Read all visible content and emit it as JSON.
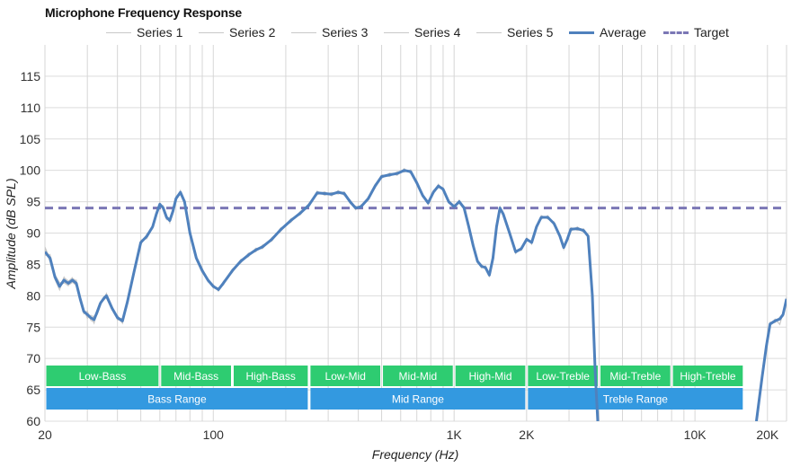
{
  "chart_data": {
    "type": "line",
    "title": "Microphone Frequency Response",
    "xlabel": "Frequency (Hz)",
    "ylabel": "Amplitude (dB SPL)",
    "xscale": "log",
    "xlim": [
      20,
      24000
    ],
    "ylim": [
      60,
      120
    ],
    "x_ticks": [
      {
        "value": 20,
        "label": "20"
      },
      {
        "value": 100,
        "label": "100"
      },
      {
        "value": 1000,
        "label": "1K"
      },
      {
        "value": 2000,
        "label": "2K"
      },
      {
        "value": 10000,
        "label": "10K"
      },
      {
        "value": 20000,
        "label": "20K"
      }
    ],
    "y_ticks": [
      60,
      65,
      70,
      75,
      80,
      85,
      90,
      95,
      100,
      105,
      110,
      115
    ],
    "grid": true,
    "legend_position": "top",
    "colors": {
      "series": "#c8c8c8",
      "average": "#4f81bd",
      "target": "#7b77b5",
      "band_green": "#2ecc71",
      "band_blue": "#3399e0"
    },
    "legend": [
      {
        "label": "Series 1",
        "style": "thin-gray"
      },
      {
        "label": "Series 2",
        "style": "thin-gray"
      },
      {
        "label": "Series 3",
        "style": "thin-gray"
      },
      {
        "label": "Series 4",
        "style": "thin-gray"
      },
      {
        "label": "Series 5",
        "style": "thin-gray"
      },
      {
        "label": "Average",
        "style": "thick-blue"
      },
      {
        "label": "Target",
        "style": "dashed-purple"
      }
    ],
    "target": 94,
    "average": [
      [
        20,
        87
      ],
      [
        21,
        86
      ],
      [
        22,
        83
      ],
      [
        23,
        81.5
      ],
      [
        24,
        82.5
      ],
      [
        25,
        82
      ],
      [
        26,
        82.5
      ],
      [
        27,
        82
      ],
      [
        28,
        79.5
      ],
      [
        29,
        77.5
      ],
      [
        30,
        77
      ],
      [
        31,
        76.5
      ],
      [
        32,
        76.2
      ],
      [
        33,
        77.5
      ],
      [
        34,
        78.8
      ],
      [
        35,
        79.5
      ],
      [
        36,
        80
      ],
      [
        38,
        78
      ],
      [
        40,
        76.5
      ],
      [
        42,
        76
      ],
      [
        44,
        79
      ],
      [
        47,
        84
      ],
      [
        50,
        88.5
      ],
      [
        53,
        89.5
      ],
      [
        56,
        91
      ],
      [
        58,
        93
      ],
      [
        60,
        94.6
      ],
      [
        62,
        94
      ],
      [
        64,
        92.5
      ],
      [
        66,
        92
      ],
      [
        68,
        93.5
      ],
      [
        70,
        95.5
      ],
      [
        73,
        96.5
      ],
      [
        76,
        95
      ],
      [
        80,
        90
      ],
      [
        85,
        86
      ],
      [
        90,
        84
      ],
      [
        95,
        82.5
      ],
      [
        100,
        81.5
      ],
      [
        105,
        81
      ],
      [
        110,
        82
      ],
      [
        120,
        84
      ],
      [
        130,
        85.5
      ],
      [
        140,
        86.5
      ],
      [
        150,
        87.3
      ],
      [
        160,
        87.8
      ],
      [
        175,
        89
      ],
      [
        190,
        90.5
      ],
      [
        210,
        92
      ],
      [
        230,
        93.2
      ],
      [
        250,
        94.5
      ],
      [
        270,
        96.4
      ],
      [
        290,
        96.3
      ],
      [
        310,
        96.2
      ],
      [
        330,
        96.5
      ],
      [
        350,
        96.3
      ],
      [
        370,
        95
      ],
      [
        390,
        94
      ],
      [
        410,
        94.2
      ],
      [
        440,
        95.5
      ],
      [
        470,
        97.5
      ],
      [
        500,
        99
      ],
      [
        540,
        99.3
      ],
      [
        580,
        99.5
      ],
      [
        620,
        100
      ],
      [
        660,
        99.8
      ],
      [
        700,
        98
      ],
      [
        740,
        96
      ],
      [
        780,
        94.8
      ],
      [
        820,
        96.5
      ],
      [
        860,
        97.5
      ],
      [
        900,
        97
      ],
      [
        950,
        95
      ],
      [
        1000,
        94.2
      ],
      [
        1050,
        95
      ],
      [
        1100,
        94
      ],
      [
        1150,
        91
      ],
      [
        1200,
        88
      ],
      [
        1250,
        85.5
      ],
      [
        1300,
        84.7
      ],
      [
        1350,
        84.5
      ],
      [
        1400,
        83.3
      ],
      [
        1450,
        86
      ],
      [
        1500,
        91
      ],
      [
        1550,
        94
      ],
      [
        1600,
        93
      ],
      [
        1700,
        90
      ],
      [
        1800,
        87
      ],
      [
        1900,
        87.5
      ],
      [
        2000,
        89
      ],
      [
        2100,
        88.5
      ],
      [
        2200,
        91
      ],
      [
        2300,
        92.5
      ],
      [
        2450,
        92.5
      ],
      [
        2600,
        91.5
      ],
      [
        2750,
        89.5
      ],
      [
        2850,
        87.7
      ],
      [
        2950,
        89
      ],
      [
        3050,
        90.6
      ],
      [
        3250,
        90.7
      ],
      [
        3450,
        90.4
      ],
      [
        3600,
        89.5
      ],
      [
        3750,
        80
      ],
      [
        3850,
        68
      ],
      [
        3950,
        60
      ],
      [
        4000,
        55
      ],
      [
        17000,
        55
      ],
      [
        18000,
        60
      ],
      [
        19000,
        67
      ],
      [
        19800,
        72
      ],
      [
        20500,
        75.5
      ],
      [
        21500,
        76
      ],
      [
        22500,
        76.3
      ],
      [
        23200,
        77
      ],
      [
        23700,
        78.5
      ],
      [
        24000,
        79.5
      ]
    ],
    "series": [
      {
        "label": "Series 1",
        "values": [
          87.3,
          86.2,
          82.6,
          80.9,
          82.9,
          82.4,
          82.2,
          81.6,
          79.9,
          77.8,
          76.4,
          76.9,
          76.6,
          77.1,
          79.1,
          79.3,
          80.4,
          78.3,
          76.1,
          76.4,
          78.6,
          84.3,
          88.1,
          89.9,
          90.7,
          93.3,
          94.9,
          93.6,
          92.1,
          92.4,
          93.2,
          95.9,
          96.2,
          95.3,
          89.7,
          86.3,
          84.4,
          82.2,
          81.8,
          80.7,
          82.3,
          83.7,
          85.8,
          86.2,
          87.6,
          87.5,
          89.3,
          90.2,
          92.3,
          92.9,
          94.8,
          96.1,
          96.6,
          95.9,
          96.8,
          96.0,
          95.3,
          93.7,
          94.5,
          95.2,
          97.8,
          98.7,
          99.6,
          99.2,
          100.3,
          99.5,
          98.3,
          95.7,
          95.1,
          96.2,
          97.8,
          96.7,
          95.3,
          93.9,
          95.3,
          93.7,
          91.3,
          87.7,
          85.8,
          84.4,
          84.8,
          83.0,
          86.3,
          90.7,
          94.3,
          92.7,
          90.3,
          86.7,
          87.8,
          88.7,
          88.8,
          90.7,
          92.8,
          92.2,
          91.8,
          89.2,
          88.0,
          88.7,
          90.9,
          90.4,
          90.7,
          89.2,
          80.3,
          67.7,
          60.3,
          54.7,
          55.3,
          59.7,
          67.3,
          71.7,
          75.8,
          75.7,
          76.6,
          76.7,
          78.8,
          79.2
        ]
      },
      {
        "label": "Series 2",
        "values": [
          86.7,
          85.8,
          83.4,
          82.1,
          82.1,
          81.6,
          82.8,
          82.4,
          79.1,
          77.2,
          77.6,
          76.1,
          75.8,
          77.9,
          78.5,
          79.7,
          79.6,
          77.7,
          76.9,
          75.6,
          79.4,
          83.7,
          88.9,
          89.1,
          91.3,
          92.7,
          94.3,
          94.4,
          92.9,
          91.6,
          93.8,
          95.1,
          96.8,
          94.7,
          90.3,
          85.7,
          83.6,
          82.8,
          81.2,
          81.3,
          81.7,
          84.3,
          85.2,
          86.8,
          87.0,
          88.1,
          88.7,
          90.8,
          91.7,
          93.5,
          94.2,
          96.7,
          96.0,
          96.5,
          96.2,
          96.6,
          94.7,
          94.3,
          93.9,
          95.8,
          97.2,
          99.3,
          99.0,
          99.8,
          99.7,
          100.1,
          97.7,
          96.3,
          94.5,
          96.8,
          97.2,
          97.3,
          94.7,
          94.5,
          94.7,
          94.3,
          90.7,
          88.3,
          85.2,
          85.0,
          84.2,
          83.6,
          85.7,
          91.3,
          93.7,
          93.3,
          89.7,
          87.3,
          87.2,
          89.3,
          88.2,
          91.3,
          92.2,
          92.8,
          91.2,
          89.8,
          87.4,
          89.3,
          90.3,
          91.0,
          90.1,
          89.8,
          79.7,
          68.3,
          59.7,
          55.3,
          54.7,
          60.3,
          66.7,
          72.3,
          75.2,
          76.3,
          75.4,
          77.3,
          78.2,
          79.8
        ]
      },
      {
        "label": "Series 3",
        "values": [
          87.6,
          85.4,
          82.7,
          81.3,
          83.0,
          81.7,
          82.1,
          82.5,
          79.3,
          77.9,
          76.7,
          76.3,
          76.8,
          77.0,
          78.4,
          79.8,
          80.2,
          78.1,
          76.6,
          76.3,
          79.2,
          83.8,
          88.2,
          89.8,
          91.2,
          92.8,
          94.4,
          94.2,
          92.7,
          91.8,
          93.4,
          95.6,
          96.3,
          95.2,
          90.1,
          85.8,
          84.2,
          82.7,
          81.4,
          81.2,
          81.8,
          83.8,
          85.7,
          86.3,
          87.4,
          87.6,
          89.2,
          90.3,
          92.2,
          93.0,
          94.7,
          96.2,
          96.5,
          96.0,
          96.7,
          96.1,
          95.2,
          93.8,
          94.4,
          95.3,
          97.7,
          98.8,
          99.5,
          99.3,
          100.2,
          99.6,
          98.2,
          95.8,
          94.6,
          96.7,
          97.3,
          97.2,
          94.8,
          94.4,
          94.8,
          94.2,
          90.8,
          88.2,
          85.3,
          84.9,
          84.3,
          83.5,
          85.8,
          91.2,
          93.8,
          93.2,
          89.8,
          87.2,
          87.3,
          89.2,
          88.3,
          91.2,
          92.3,
          92.7,
          91.3,
          89.7,
          87.5,
          89.2,
          90.4,
          90.9,
          90.2,
          89.7,
          79.8,
          68.2,
          59.8,
          55.2,
          54.8,
          60.2,
          66.8,
          72.2,
          75.3,
          76.2,
          75.5,
          77.2,
          78.3,
          79.7
        ]
      },
      {
        "label": "Series 4",
        "values": [
          86.4,
          86.6,
          83.3,
          81.8,
          82.0,
          82.3,
          82.9,
          81.5,
          79.8,
          77.1,
          77.3,
          76.7,
          75.6,
          77.7,
          79.0,
          79.2,
          79.8,
          77.9,
          76.4,
          75.7,
          78.8,
          84.2,
          88.6,
          89.3,
          90.8,
          93.2,
          94.8,
          93.8,
          92.3,
          92.2,
          93.6,
          95.3,
          96.7,
          94.8,
          89.8,
          86.2,
          83.8,
          82.3,
          81.7,
          80.8,
          82.2,
          84.2,
          85.3,
          86.7,
          87.1,
          88.0,
          88.8,
          90.7,
          91.8,
          93.4,
          94.3,
          96.6,
          96.1,
          96.4,
          96.3,
          96.5,
          94.8,
          94.2,
          94.0,
          95.7,
          97.3,
          99.2,
          99.1,
          99.7,
          99.8,
          100.0,
          97.8,
          96.2,
          95.0,
          96.3,
          97.7,
          96.8,
          95.2,
          94.0,
          95.2,
          93.8,
          91.2,
          87.8,
          85.7,
          84.5,
          84.7,
          83.1,
          86.2,
          90.8,
          94.2,
          92.8,
          90.2,
          86.8,
          87.7,
          88.8,
          88.7,
          90.8,
          92.7,
          92.3,
          91.7,
          89.3,
          87.9,
          88.8,
          90.8,
          90.5,
          90.6,
          89.3,
          80.2,
          67.8,
          60.2,
          54.8,
          55.2,
          59.8,
          67.2,
          71.8,
          75.7,
          75.8,
          76.5,
          76.8,
          78.7,
          79.3
        ]
      },
      {
        "label": "Series 5",
        "values": [
          87.8,
          85.9,
          82.9,
          81.6,
          82.6,
          82.0,
          82.6,
          82.2,
          79.6,
          77.6,
          77.0,
          76.5,
          76.3,
          77.4,
          78.7,
          79.6,
          80.0,
          78.0,
          76.7,
          75.9,
          79.1,
          83.9,
          88.4,
          89.6,
          91.0,
          93.0,
          94.6,
          94.0,
          92.5,
          92.0,
          93.5,
          95.5,
          96.5,
          95.1,
          90.0,
          86.0,
          84.0,
          82.5,
          81.5,
          81.0,
          82.0,
          84.0,
          85.5,
          86.5,
          87.3,
          87.8,
          89.0,
          90.5,
          92.0,
          93.2,
          94.5,
          96.4,
          96.3,
          96.2,
          96.5,
          96.3,
          95.0,
          94.0,
          94.2,
          95.5,
          97.5,
          99.0,
          99.3,
          99.5,
          100.0,
          99.8,
          98.0,
          96.0,
          94.8,
          96.5,
          97.5,
          97.0,
          95.0,
          94.2,
          95.0,
          94.0,
          91.0,
          88.0,
          85.5,
          84.7,
          84.5,
          83.3,
          86.0,
          91.0,
          94.0,
          93.0,
          90.0,
          87.0,
          87.5,
          89.0,
          88.5,
          91.0,
          92.5,
          92.5,
          91.5,
          89.5,
          87.7,
          89.0,
          90.6,
          90.7,
          90.4,
          89.5,
          80.0,
          68.0,
          60.0,
          55.0,
          55.0,
          60.0,
          67.0,
          72.0,
          75.5,
          76.0,
          76.3,
          77.0,
          78.5,
          79.5
        ]
      }
    ],
    "bands": [
      {
        "label": "Low-Bass",
        "from": 20,
        "to": 60,
        "row": 1
      },
      {
        "label": "Mid-Bass",
        "from": 60,
        "to": 120,
        "row": 1
      },
      {
        "label": "High-Bass",
        "from": 120,
        "to": 250,
        "row": 1
      },
      {
        "label": "Low-Mid",
        "from": 250,
        "to": 500,
        "row": 1
      },
      {
        "label": "Mid-Mid",
        "from": 500,
        "to": 1000,
        "row": 1
      },
      {
        "label": "High-Mid",
        "from": 1000,
        "to": 2000,
        "row": 1
      },
      {
        "label": "Low-Treble",
        "from": 2000,
        "to": 4000,
        "row": 1
      },
      {
        "label": "Mid-Treble",
        "from": 4000,
        "to": 8000,
        "row": 1
      },
      {
        "label": "High-Treble",
        "from": 8000,
        "to": 16000,
        "row": 1
      },
      {
        "label": "Bass Range",
        "from": 20,
        "to": 250,
        "row": 2
      },
      {
        "label": "Mid Range",
        "from": 250,
        "to": 2000,
        "row": 2
      },
      {
        "label": "Treble Range",
        "from": 2000,
        "to": 16000,
        "row": 2
      }
    ]
  }
}
